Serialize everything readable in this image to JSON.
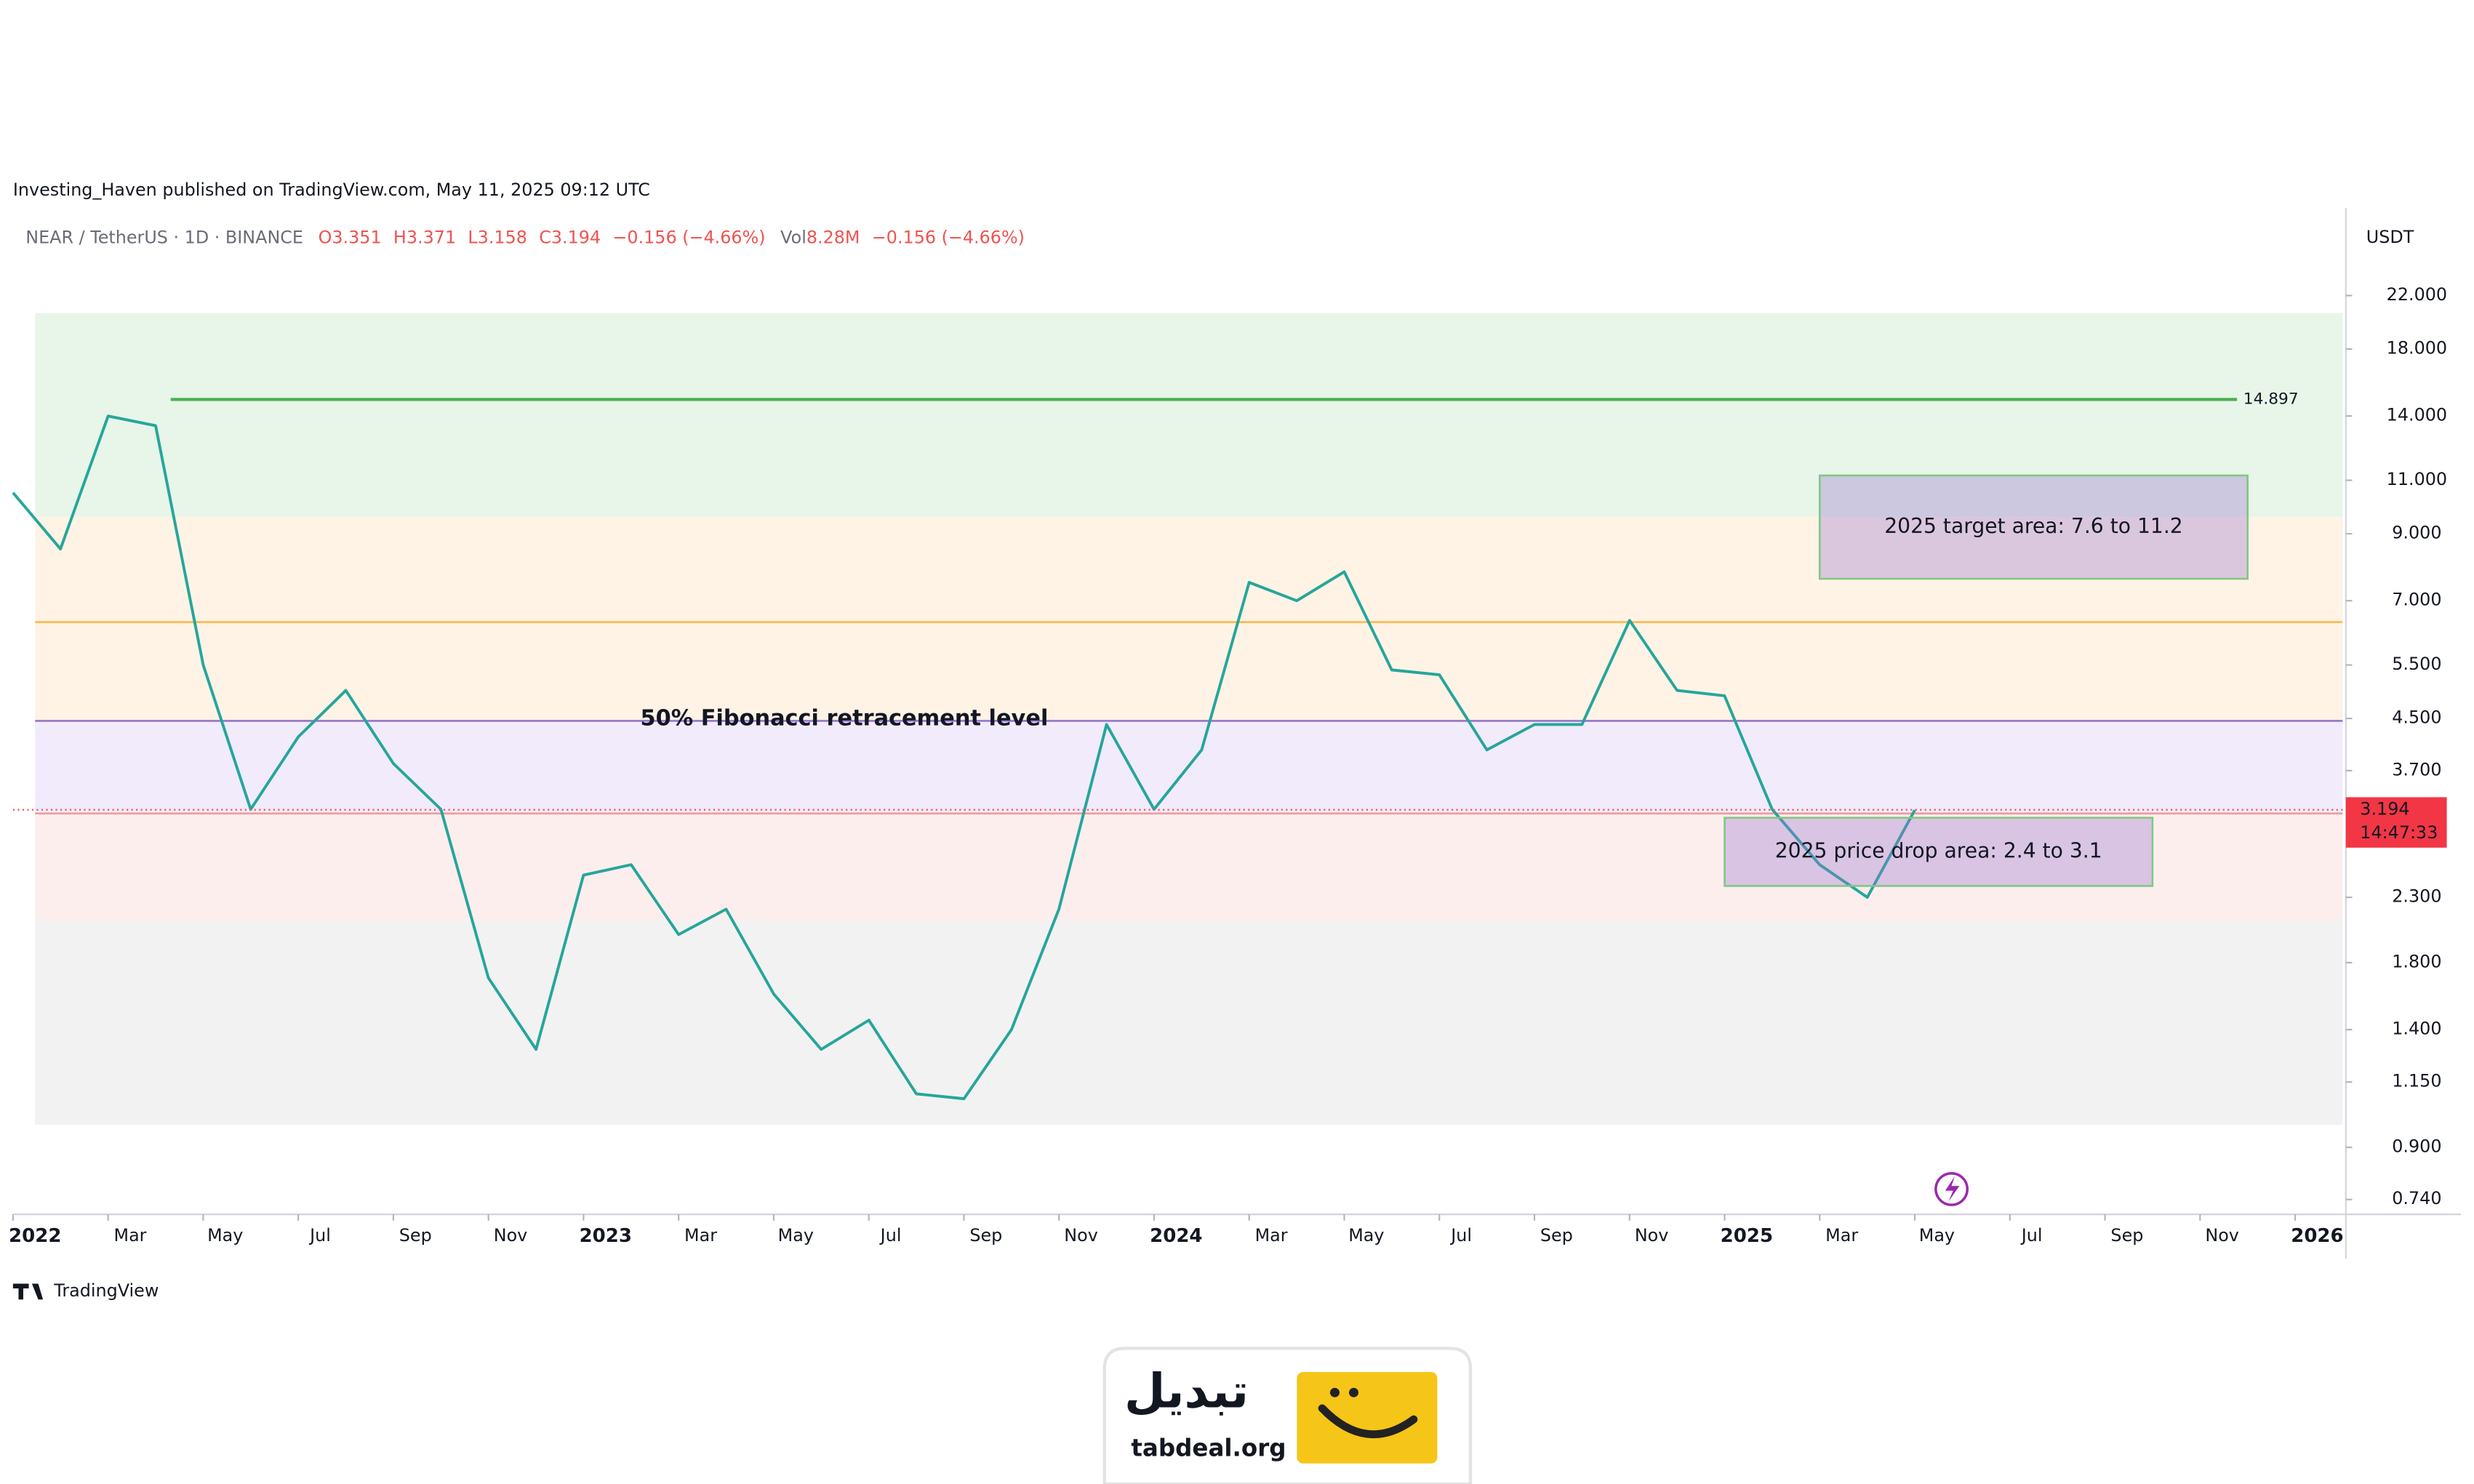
{
  "header": {
    "publisher": "Investing_Haven published on TradingView.com, May 11, 2025 09:12 UTC",
    "symbol": "NEAR / TetherUS · 1D · BINANCE",
    "quote": [
      "O3.351",
      "H3.371",
      "L3.158",
      "C3.194",
      "−0.156 (−4.66%)"
    ],
    "volume_label": "Vol",
    "volume": "8.28M",
    "volume_change": "−0.156 (−4.66%)"
  },
  "chart_data": {
    "type": "line",
    "log_scale": true,
    "color": "#26a69a",
    "currency": "USDT",
    "x": [
      "2022-01",
      "2022-02",
      "2022-03",
      "2022-04",
      "2022-05",
      "2022-06",
      "2022-07",
      "2022-08",
      "2022-09",
      "2022-10",
      "2022-11",
      "2022-12",
      "2023-01",
      "2023-02",
      "2023-03",
      "2023-04",
      "2023-05",
      "2023-06",
      "2023-07",
      "2023-08",
      "2023-09",
      "2023-10",
      "2023-11",
      "2023-12",
      "2024-01",
      "2024-02",
      "2024-03",
      "2024-04",
      "2024-05",
      "2024-06",
      "2024-07",
      "2024-08",
      "2024-09",
      "2024-10",
      "2024-11",
      "2024-12",
      "2025-01",
      "2025-02",
      "2025-03",
      "2025-04",
      "2025-05"
    ],
    "values": [
      10.5,
      8.5,
      14,
      13.5,
      5.5,
      3.2,
      4.2,
      5.0,
      3.8,
      3.2,
      1.7,
      1.3,
      2.5,
      2.6,
      2.0,
      2.2,
      1.6,
      1.3,
      1.45,
      1.1,
      1.08,
      1.4,
      2.2,
      4.4,
      3.2,
      4.0,
      7.5,
      7.0,
      7.8,
      5.4,
      5.3,
      4.0,
      4.4,
      4.4,
      6.5,
      5.0,
      4.9,
      3.2,
      2.6,
      2.3,
      3.19
    ],
    "xlim": [
      "2022-01",
      "2026-02"
    ],
    "xticks": [
      {
        "value": "2022-01",
        "label": "2022"
      },
      {
        "value": "2022-03",
        "label": "Mar"
      },
      {
        "value": "2022-05",
        "label": "May"
      },
      {
        "value": "2022-07",
        "label": "Jul"
      },
      {
        "value": "2022-09",
        "label": "Sep"
      },
      {
        "value": "2022-11",
        "label": "Nov"
      },
      {
        "value": "2023-01",
        "label": "2023"
      },
      {
        "value": "2023-03",
        "label": "Mar"
      },
      {
        "value": "2023-05",
        "label": "May"
      },
      {
        "value": "2023-07",
        "label": "Jul"
      },
      {
        "value": "2023-09",
        "label": "Sep"
      },
      {
        "value": "2023-11",
        "label": "Nov"
      },
      {
        "value": "2024-01",
        "label": "2024"
      },
      {
        "value": "2024-03",
        "label": "Mar"
      },
      {
        "value": "2024-05",
        "label": "May"
      },
      {
        "value": "2024-07",
        "label": "Jul"
      },
      {
        "value": "2024-09",
        "label": "Sep"
      },
      {
        "value": "2024-11",
        "label": "Nov"
      },
      {
        "value": "2025-01",
        "label": "2025"
      },
      {
        "value": "2025-03",
        "label": "Mar"
      },
      {
        "value": "2025-05",
        "label": "May"
      },
      {
        "value": "2025-07",
        "label": "Jul"
      },
      {
        "value": "2025-09",
        "label": "Sep"
      },
      {
        "value": "2025-11",
        "label": "Nov"
      },
      {
        "value": "2026-01",
        "label": "2026"
      }
    ],
    "ylim": [
      0.7,
      30
    ],
    "yticks": [
      {
        "value": 22,
        "label": "22.000"
      },
      {
        "value": 18,
        "label": "18.000"
      },
      {
        "value": 14,
        "label": "14.000"
      },
      {
        "value": 11,
        "label": "11.000"
      },
      {
        "value": 9,
        "label": "9.000"
      },
      {
        "value": 7,
        "label": "7.000"
      },
      {
        "value": 5.5,
        "label": "5.500"
      },
      {
        "value": 4.5,
        "label": "4.500"
      },
      {
        "value": 3.7,
        "label": "3.700"
      },
      {
        "value": 2.3,
        "label": "2.300"
      },
      {
        "value": 1.8,
        "label": "1.800"
      },
      {
        "value": 1.4,
        "label": "1.400"
      },
      {
        "value": 1.15,
        "label": "1.150"
      },
      {
        "value": 0.9,
        "label": "0.900"
      },
      {
        "value": 0.74,
        "label": "0.740"
      }
    ],
    "bands": [
      {
        "from": 9.59,
        "to": 20.6,
        "color": "#e8f5e9"
      },
      {
        "from": 4.46,
        "to": 9.59,
        "color": "#fff3e6"
      },
      {
        "from": 3.15,
        "to": 4.46,
        "color": "#f1ebfb"
      },
      {
        "from": 2.11,
        "to": 3.15,
        "color": "#fdeeee"
      },
      {
        "from": 0.98,
        "to": 2.11,
        "color": "#f2f2f2"
      }
    ],
    "lines": [
      {
        "value": 6.46,
        "color": "#ffb74d"
      },
      {
        "value": 4.46,
        "color": "#9575cd"
      },
      {
        "value": 3.15,
        "color": "#ef9a9a"
      }
    ],
    "level": {
      "value": 14.897,
      "color": "#4caf50"
    },
    "fib_label": "50% Fibonacci retracement level",
    "boxes": [
      {
        "label": "2025 target area: 7.6 to 11.2",
        "from": "2025-03",
        "to": "2025-12",
        "low": 7.6,
        "high": 11.2
      },
      {
        "label": "2025 price drop area: 2.4 to 3.1",
        "from": "2025-01",
        "to": "2025-10",
        "low": 2.4,
        "high": 3.1
      }
    ],
    "last_price": 3.194,
    "countdown": "14:47:33"
  },
  "footer": {
    "watermark": "TradingView",
    "brand": "تبدیل",
    "site": "tabdeal.org"
  }
}
